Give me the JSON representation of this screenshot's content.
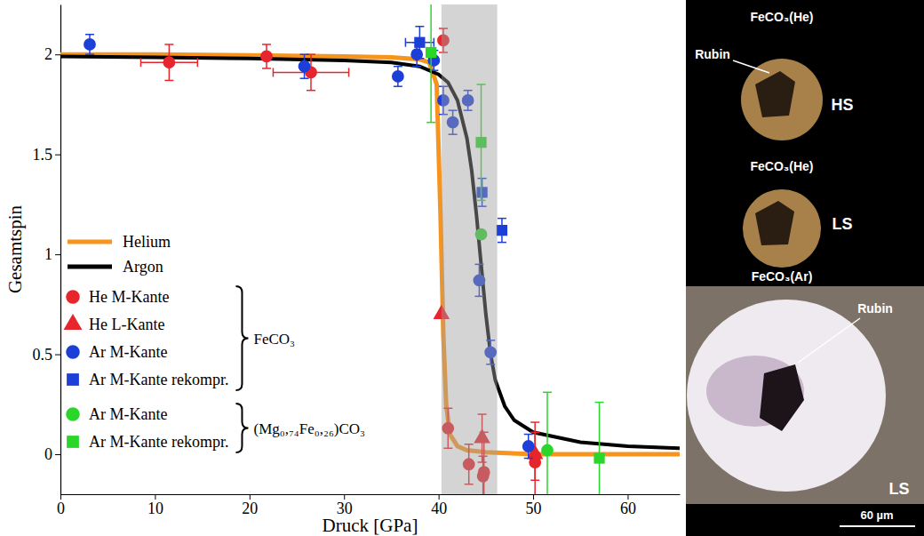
{
  "chart_data": {
    "type": "scatter",
    "x_label": "Druck [GPa]",
    "y_label": "Gesamtspin",
    "xlim": [
      0,
      65.5
    ],
    "xticks": [
      0,
      10,
      20,
      30,
      40,
      50,
      60
    ],
    "ylim": [
      -0.2,
      2.25
    ],
    "yticks": [
      0,
      0.5,
      1,
      1.5,
      2
    ],
    "band": [
      40.3,
      46.2
    ],
    "series": [
      {
        "name": "Helium",
        "type": "line",
        "color": "#f7941d",
        "x": [
          0,
          10,
          20,
          30,
          35,
          38,
          39,
          39.8,
          40.2,
          40.5,
          40.8,
          41.2,
          42,
          43,
          45,
          50,
          55,
          65.5
        ],
        "values": [
          2.0,
          2.0,
          1.995,
          1.99,
          1.985,
          1.975,
          1.96,
          1.85,
          1.2,
          0.6,
          0.25,
          0.1,
          0.04,
          0.02,
          0.01,
          0.0,
          0.0,
          0.0
        ]
      },
      {
        "name": "Argon",
        "type": "line",
        "color": "#000000",
        "x": [
          0,
          10,
          20,
          30,
          35,
          38,
          40,
          41,
          42,
          43,
          43.5,
          44,
          44.5,
          45,
          45.5,
          46,
          47,
          48,
          50,
          55,
          60,
          65.5
        ],
        "values": [
          1.99,
          1.985,
          1.98,
          1.97,
          1.96,
          1.94,
          1.9,
          1.86,
          1.77,
          1.58,
          1.42,
          1.2,
          0.95,
          0.7,
          0.5,
          0.37,
          0.24,
          0.17,
          0.11,
          0.06,
          0.04,
          0.03
        ]
      },
      {
        "name": "He M-Kante",
        "type": "scatter",
        "color": "#e6262c",
        "marker": "circle",
        "x": [
          11.5,
          21.8,
          26.5,
          40.5,
          41.0,
          43.2,
          44.7,
          44.8,
          50.2,
          50.2
        ],
        "values": [
          1.96,
          1.99,
          1.91,
          2.07,
          0.13,
          -0.05,
          -0.11,
          -0.09,
          -0.04,
          -0.01
        ],
        "y_errors": [
          0.09,
          0.06,
          0.09,
          0.06,
          0.1,
          0.1,
          0.1,
          0.2,
          0.2,
          0.12
        ],
        "x_errors": [
          3.0,
          null,
          4.0,
          null,
          null,
          null,
          null,
          null,
          null,
          null
        ]
      },
      {
        "name": "He L-Kante",
        "type": "scatter",
        "color": "#e6262c",
        "marker": "triangle",
        "x": [
          40.3,
          44.6,
          50.2
        ],
        "values": [
          0.7,
          0.08,
          0.0
        ],
        "y_errors": [
          null,
          0.12,
          null
        ],
        "x_errors": [
          null,
          null,
          null
        ]
      },
      {
        "name": "Ar M-Kante",
        "type": "scatter",
        "color": "#1c3fd8",
        "marker": "circle",
        "x": [
          3.1,
          25.8,
          35.7,
          37.7,
          39.5,
          40.5,
          41.5,
          43.1,
          44.3,
          45.5,
          49.5
        ],
        "values": [
          2.05,
          1.94,
          1.89,
          2.0,
          1.97,
          1.77,
          1.66,
          1.77,
          0.87,
          0.51,
          0.04
        ],
        "y_errors": [
          0.05,
          0.06,
          0.05,
          0.06,
          0.05,
          0.07,
          0.06,
          0.05,
          0.08,
          0.06,
          0.06
        ],
        "x_errors": [
          null,
          null,
          null,
          null,
          null,
          null,
          null,
          null,
          null,
          null,
          null
        ]
      },
      {
        "name": "Ar M-Kante rekompr.",
        "type": "scatter",
        "color": "#1c3fd8",
        "marker": "square",
        "x": [
          38.0,
          44.6,
          46.7
        ],
        "values": [
          2.06,
          1.31,
          1.12
        ],
        "y_errors": [
          0.08,
          0.07,
          0.06
        ],
        "x_errors": [
          1.5,
          null,
          null
        ]
      },
      {
        "name": "Ar M-Kante",
        "type": "scatter",
        "color": "#2bd62b",
        "marker": "circle",
        "x": [
          44.5,
          51.5
        ],
        "values": [
          1.1,
          0.02
        ],
        "y_errors": [
          null,
          0.29
        ],
        "x_errors": [
          null,
          null
        ]
      },
      {
        "name": "Ar M-Kante rekompr.",
        "type": "scatter",
        "color": "#2bd62b",
        "marker": "square",
        "x": [
          39.2,
          44.5,
          57.0
        ],
        "values": [
          2.01,
          1.56,
          -0.02
        ],
        "y_errors": [
          0.35,
          0.29,
          0.28
        ],
        "x_errors": [
          null,
          null,
          null
        ]
      }
    ],
    "legend_groups": [
      {
        "label": "FeCO₃",
        "series": [
          2,
          3,
          4,
          5
        ]
      },
      {
        "label": "(Mg₀,₇₄Fe₀,₂₆)CO₃",
        "series": [
          6,
          7
        ]
      }
    ],
    "legend": "lower left"
  },
  "photo_panel": {
    "images": [
      {
        "title": "FeCO₃(He)",
        "label": "HS",
        "annotation": "Rubin"
      },
      {
        "title": "FeCO₃(He)",
        "label": "LS"
      },
      {
        "title": "FeCO₃(Ar)",
        "label": "LS",
        "annotation": "Rubin"
      }
    ],
    "scale_bar": "60 µm"
  }
}
